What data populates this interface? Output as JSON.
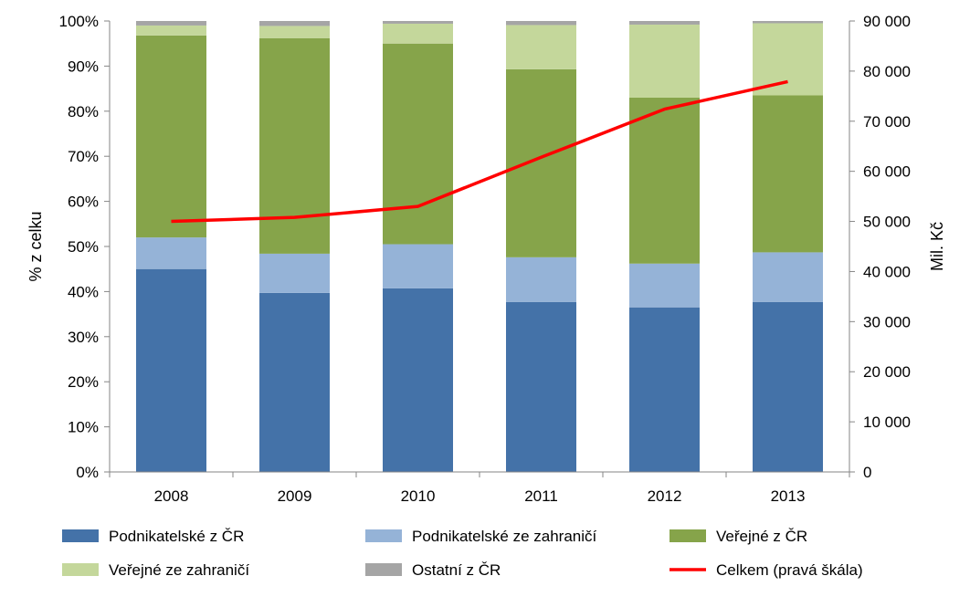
{
  "chart_data": {
    "type": "bar",
    "stacked": true,
    "percent_stacked": true,
    "categories": [
      "2008",
      "2009",
      "2010",
      "2011",
      "2012",
      "2013"
    ],
    "series": [
      {
        "name": "Podnikatelské z ČR",
        "color": "#4472A8",
        "values": [
          45.0,
          39.7,
          40.7,
          37.7,
          36.5,
          37.7
        ]
      },
      {
        "name": "Podnikatelské ze zahraničí",
        "color": "#95B3D7",
        "values": [
          7.0,
          8.7,
          9.8,
          9.9,
          9.7,
          11.0
        ]
      },
      {
        "name": "Veřejné z ČR",
        "color": "#86A44A",
        "values": [
          44.8,
          47.8,
          44.5,
          41.7,
          36.8,
          34.8
        ]
      },
      {
        "name": "Veřejné ze zahraničí",
        "color": "#C4D79B",
        "values": [
          2.2,
          2.7,
          4.4,
          9.8,
          16.2,
          16.0
        ]
      },
      {
        "name": "Ostatní z ČR",
        "color": "#A5A5A5",
        "values": [
          1.0,
          1.1,
          0.6,
          0.9,
          0.8,
          0.5
        ]
      }
    ],
    "line_series": {
      "name": "Celkem (pravá škála)",
      "color": "#FF0000",
      "axis": "right",
      "values": [
        50000,
        50800,
        53000,
        62800,
        72400,
        77900
      ]
    },
    "ylabel": "% z celku",
    "ylabel_right": "Mil. Kč",
    "ylim": [
      0,
      100
    ],
    "ylim_right": [
      0,
      90000
    ],
    "yticks": [
      "0%",
      "10%",
      "20%",
      "30%",
      "40%",
      "50%",
      "60%",
      "70%",
      "80%",
      "90%",
      "100%"
    ],
    "yticks_right": [
      "0",
      "10 000",
      "20 000",
      "30 000",
      "40 000",
      "50 000",
      "60 000",
      "70 000",
      "80 000",
      "90 000"
    ],
    "grid": false,
    "legend_position": "bottom"
  }
}
